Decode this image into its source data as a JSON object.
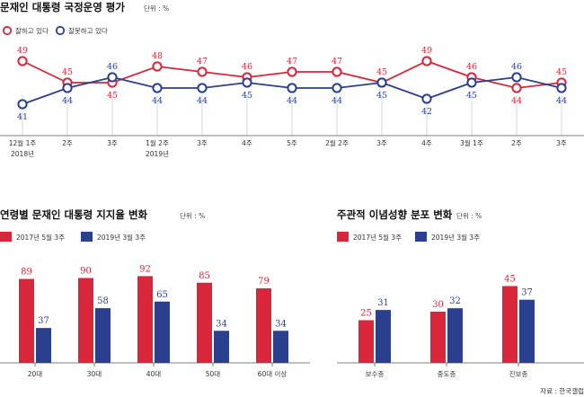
{
  "colors": {
    "red": "#d9263a",
    "blue": "#2b3f8f",
    "axis": "#555555",
    "grid": "#bbbbbb"
  },
  "chart_data": [
    {
      "type": "line",
      "title": "문재인 대통령 국정운영 평가",
      "unit": "단위 : %",
      "x": [
        "12월 1주|2018년",
        "2주",
        "3주",
        "1월 2주|2019년",
        "3주",
        "4주",
        "5주",
        "2월 2주",
        "3주",
        "4주",
        "3월 1주",
        "2주",
        "3주"
      ],
      "ylim": [
        38,
        52
      ],
      "series": [
        {
          "name": "잘하고 있다",
          "color": "#d9263a",
          "values": [
            49,
            45,
            45,
            48,
            47,
            46,
            47,
            47,
            45,
            49,
            46,
            44,
            45
          ]
        },
        {
          "name": "잘못하고 있다",
          "color": "#2b3f8f",
          "values": [
            41,
            44,
            46,
            44,
            44,
            45,
            44,
            44,
            45,
            42,
            45,
            46,
            44
          ]
        }
      ]
    },
    {
      "type": "bar",
      "title": "연령별 문재인 대통령 지지율 변화",
      "unit": "단위 : %",
      "categories": [
        "20대",
        "30대",
        "40대",
        "50대",
        "60대 이상"
      ],
      "ylim": [
        0,
        100
      ],
      "series": [
        {
          "name": "2017년 5월 3주",
          "color": "#d9263a",
          "values": [
            89,
            90,
            92,
            85,
            79
          ]
        },
        {
          "name": "2019년 3월 3주",
          "color": "#2b3f8f",
          "values": [
            37,
            58,
            65,
            34,
            34
          ]
        }
      ]
    },
    {
      "type": "bar",
      "title": "주관적 이념성향 분포 변화",
      "unit": "단위 : %",
      "categories": [
        "보수층",
        "중도층",
        "진보층"
      ],
      "ylim": [
        0,
        100
      ],
      "series": [
        {
          "name": "2017년 5월 3주",
          "color": "#d9263a",
          "values": [
            25,
            30,
            45
          ]
        },
        {
          "name": "2019년 3월 3주",
          "color": "#2b3f8f",
          "values": [
            31,
            32,
            37
          ]
        }
      ]
    }
  ],
  "source": "자료 : 한국갤럽"
}
